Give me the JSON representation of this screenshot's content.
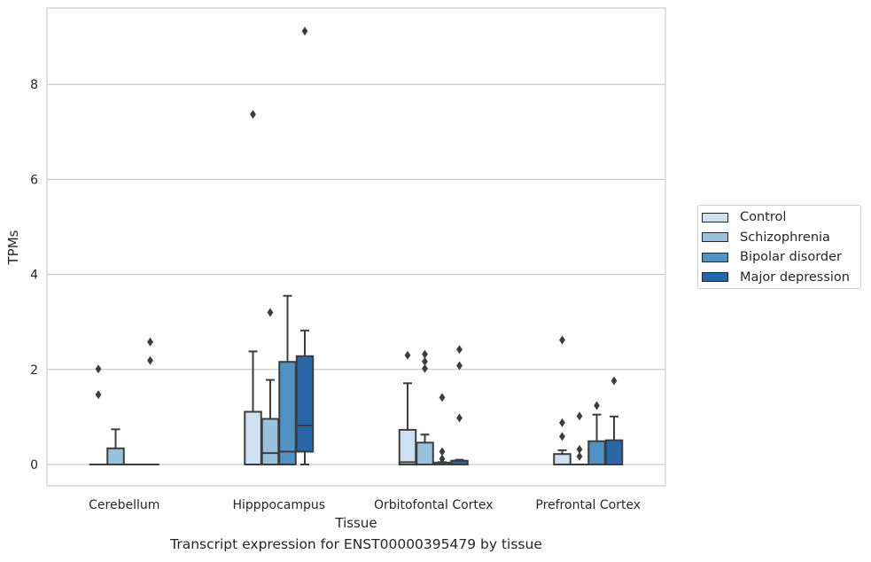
{
  "chart_data": {
    "type": "box",
    "xlabel": "Tissue",
    "ylabel": "TPMs",
    "caption": "Transcript expression for ENST00000395479 by tissue",
    "categories": [
      "Cerebellum",
      "Hipppocampus",
      "Orbitofontal Cortex",
      "Prefrontal Cortex"
    ],
    "ylim": [
      -0.45,
      9.6
    ],
    "yticks": [
      0,
      2,
      4,
      6,
      8
    ],
    "grid": "horizontal",
    "legend_position": "right",
    "series": [
      {
        "name": "Control",
        "color": "#cfe0f0",
        "boxes": [
          {
            "q1": 0,
            "median": 0,
            "q3": 0,
            "whisker_low": 0,
            "whisker_high": 0,
            "outliers": [
              1.47,
              2.01
            ]
          },
          {
            "q1": 0,
            "median": 0,
            "q3": 1.11,
            "whisker_low": 0,
            "whisker_high": 2.38,
            "outliers": [
              7.37
            ]
          },
          {
            "q1": 0,
            "median": 0.05,
            "q3": 0.73,
            "whisker_low": 0,
            "whisker_high": 1.71,
            "outliers": [
              2.3
            ]
          },
          {
            "q1": 0,
            "median": 0,
            "q3": 0.22,
            "whisker_low": 0,
            "whisker_high": 0.3,
            "outliers": [
              0.59,
              0.88,
              2.62
            ]
          }
        ]
      },
      {
        "name": "Schizophrenia",
        "color": "#9ac2dd",
        "boxes": [
          {
            "q1": 0,
            "median": 0,
            "q3": 0.34,
            "whisker_low": 0,
            "whisker_high": 0.74,
            "outliers": []
          },
          {
            "q1": 0,
            "median": 0.24,
            "q3": 0.96,
            "whisker_low": 0,
            "whisker_high": 1.78,
            "outliers": [
              3.2
            ]
          },
          {
            "q1": 0,
            "median": 0,
            "q3": 0.46,
            "whisker_low": 0,
            "whisker_high": 0.63,
            "outliers": [
              2.02,
              2.17,
              2.32
            ]
          },
          {
            "q1": 0,
            "median": 0,
            "q3": 0,
            "whisker_low": 0,
            "whisker_high": 0,
            "outliers": [
              0.17,
              0.32,
              1.02
            ]
          }
        ]
      },
      {
        "name": "Bipolar disorder",
        "color": "#5192c4",
        "boxes": [
          {
            "q1": 0,
            "median": 0,
            "q3": 0,
            "whisker_low": 0,
            "whisker_high": 0,
            "outliers": []
          },
          {
            "q1": 0,
            "median": 0.27,
            "q3": 2.16,
            "whisker_low": 0,
            "whisker_high": 3.55,
            "outliers": []
          },
          {
            "q1": 0,
            "median": 0,
            "q3": 0.04,
            "whisker_low": 0,
            "whisker_high": 0.05,
            "outliers": [
              0.12,
              0.27,
              1.41
            ]
          },
          {
            "q1": 0,
            "median": 0,
            "q3": 0.49,
            "whisker_low": 0,
            "whisker_high": 1.05,
            "outliers": [
              1.24
            ]
          }
        ]
      },
      {
        "name": "Major depression",
        "color": "#2767a8",
        "boxes": [
          {
            "q1": 0,
            "median": 0,
            "q3": 0,
            "whisker_low": 0,
            "whisker_high": 0,
            "outliers": [
              2.19,
              2.58
            ]
          },
          {
            "q1": 0.27,
            "median": 0.82,
            "q3": 2.28,
            "whisker_low": 0,
            "whisker_high": 2.82,
            "outliers": [
              9.12
            ]
          },
          {
            "q1": 0,
            "median": 0,
            "q3": 0.08,
            "whisker_low": 0,
            "whisker_high": 0.1,
            "outliers": [
              0.98,
              2.08,
              2.42
            ]
          },
          {
            "q1": 0,
            "median": 0,
            "q3": 0.51,
            "whisker_low": 0,
            "whisker_high": 1.01,
            "outliers": [
              1.76
            ]
          }
        ]
      }
    ]
  }
}
